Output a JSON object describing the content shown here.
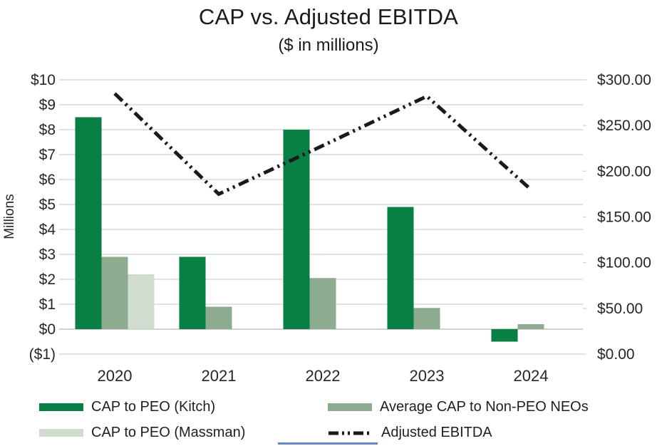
{
  "chart": {
    "title": "CAP vs. Adjusted EBITDA",
    "subtitle": "($ in millions)"
  },
  "chart_data": {
    "type": "bar",
    "subtype": "grouped-bars-with-line-combo",
    "title": "CAP vs. Adjusted EBITDA",
    "subtitle": "($ in millions)",
    "categories": [
      "2020",
      "2021",
      "2022",
      "2023",
      "2024"
    ],
    "series": [
      {
        "name": "CAP to PEO (Kitch)",
        "type": "bar",
        "axis": "left",
        "color": "#087F43",
        "values": [
          8.5,
          2.9,
          8.0,
          4.9,
          -0.5
        ]
      },
      {
        "name": "Average CAP to Non-PEO NEOs",
        "type": "bar",
        "axis": "left",
        "color": "#8DAB8E",
        "values": [
          2.9,
          0.9,
          2.05,
          0.85,
          0.2
        ]
      },
      {
        "name": "CAP to PEO (Massman)",
        "type": "bar",
        "axis": "left",
        "color": "#D1DCD0",
        "values": [
          2.2,
          null,
          null,
          null,
          null
        ]
      },
      {
        "name": "Adjusted EBITDA",
        "type": "line",
        "axis": "right",
        "color": "#1A1A1A",
        "dash": "dash-dot-dot",
        "values": [
          285,
          175,
          228,
          282,
          180
        ]
      }
    ],
    "left_axis": {
      "title": "Millions",
      "min": -1,
      "max": 10,
      "step": 1,
      "tick_labels": [
        "$10",
        "$9",
        "$8",
        "$7",
        "$6",
        "$5",
        "$4",
        "$3",
        "$2",
        "$1",
        "$0",
        "($1)"
      ]
    },
    "right_axis": {
      "min": 0,
      "max": 300,
      "step": 50,
      "tick_labels": [
        "$300.00",
        "$250.00",
        "$200.00",
        "$150.00",
        "$100.00",
        "$50.00",
        "$0.00"
      ]
    },
    "grid": true,
    "legend_position": "bottom",
    "colors": {
      "gridline": "#D8D8D8",
      "zero_line": "#C4C4C4",
      "text": "#262626"
    }
  },
  "legend": {
    "items": [
      {
        "label": "CAP to PEO (Kitch)",
        "swatch": "bar",
        "color": "#087F43"
      },
      {
        "label": "Average CAP to Non-PEO NEOs",
        "swatch": "bar",
        "color": "#8DAB8E"
      },
      {
        "label": "CAP to PEO (Massman)",
        "swatch": "bar",
        "color": "#D1DCD0"
      },
      {
        "label": "Adjusted EBITDA",
        "swatch": "line",
        "color": "#1A1A1A"
      }
    ]
  }
}
